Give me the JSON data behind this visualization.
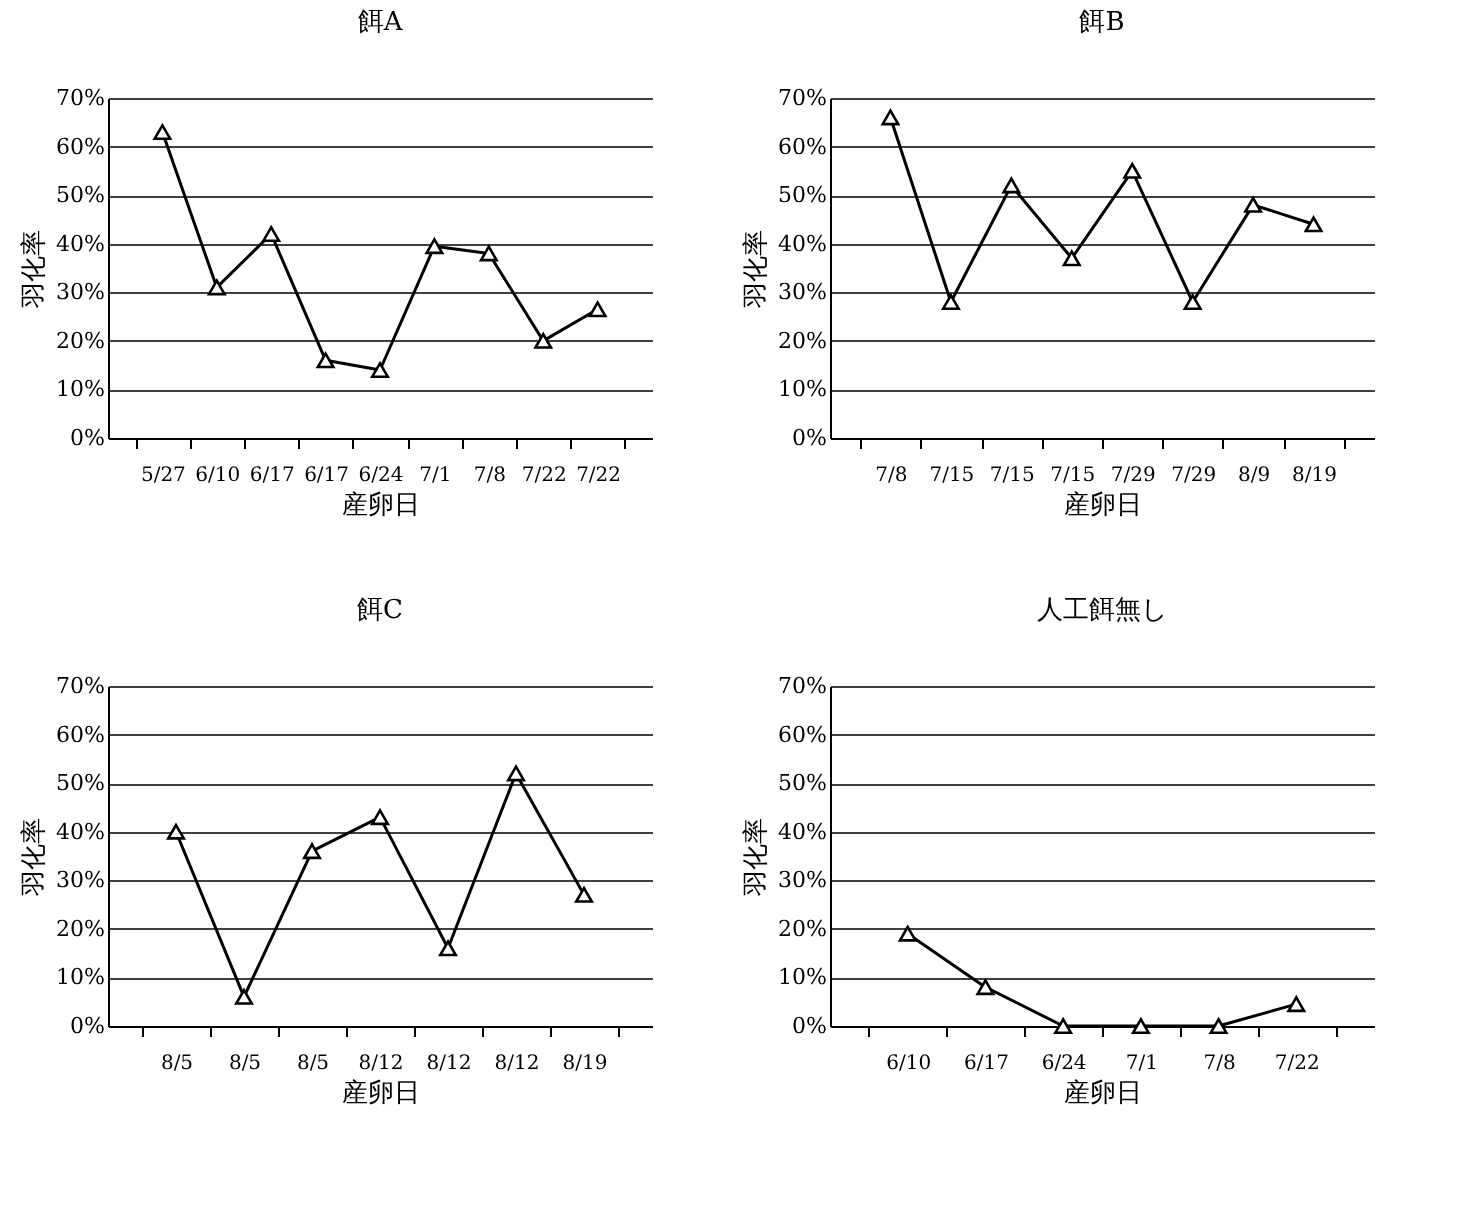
{
  "chart_data": [
    {
      "type": "line",
      "title": "餌A",
      "xlabel": "産卵日",
      "ylabel": "羽化率",
      "categories": [
        "5/27",
        "6/10",
        "6/17",
        "6/17",
        "6/24",
        "7/1",
        "7/8",
        "7/22",
        "7/22"
      ],
      "series": [
        {
          "color": "#000000",
          "values": [
            63,
            31,
            42,
            16,
            14,
            39.5,
            38,
            20,
            26.5
          ]
        }
      ],
      "ylim": [
        0,
        70
      ],
      "yticks": [
        {
          "value": 0,
          "label": "0%"
        },
        {
          "value": 10,
          "label": "10%"
        },
        {
          "value": 20,
          "label": "20%"
        },
        {
          "value": 30,
          "label": "30%"
        },
        {
          "value": 40,
          "label": "40%"
        },
        {
          "value": 50,
          "label": "50%"
        },
        {
          "value": 60,
          "label": "60%"
        },
        {
          "value": 70,
          "label": "70%"
        }
      ],
      "grid": "y",
      "marker": "triangle",
      "line_style": "solid"
    },
    {
      "type": "line",
      "title": "餌B",
      "xlabel": "産卵日",
      "ylabel": "羽化率",
      "categories": [
        "7/8",
        "7/15",
        "7/15",
        "7/15",
        "7/29",
        "7/29",
        "8/9",
        "8/19"
      ],
      "series": [
        {
          "color": "#000000",
          "values": [
            66,
            28,
            52,
            37,
            55,
            28,
            48,
            44
          ]
        }
      ],
      "ylim": [
        0,
        70
      ],
      "yticks": [
        {
          "value": 0,
          "label": "0%"
        },
        {
          "value": 10,
          "label": "10%"
        },
        {
          "value": 20,
          "label": "20%"
        },
        {
          "value": 30,
          "label": "30%"
        },
        {
          "value": 40,
          "label": "40%"
        },
        {
          "value": 50,
          "label": "50%"
        },
        {
          "value": 60,
          "label": "60%"
        },
        {
          "value": 70,
          "label": "70%"
        }
      ],
      "grid": "y",
      "marker": "triangle",
      "line_style": "solid"
    },
    {
      "type": "line",
      "title": "餌C",
      "xlabel": "産卵日",
      "ylabel": "羽化率",
      "categories": [
        "8/5",
        "8/5",
        "8/5",
        "8/12",
        "8/12",
        "8/12",
        "8/19"
      ],
      "series": [
        {
          "color": "#000000",
          "values": [
            40,
            6,
            36,
            43,
            16,
            52,
            27
          ]
        }
      ],
      "ylim": [
        0,
        70
      ],
      "yticks": [
        {
          "value": 0,
          "label": "0%"
        },
        {
          "value": 10,
          "label": "10%"
        },
        {
          "value": 20,
          "label": "20%"
        },
        {
          "value": 30,
          "label": "30%"
        },
        {
          "value": 40,
          "label": "40%"
        },
        {
          "value": 50,
          "label": "50%"
        },
        {
          "value": 60,
          "label": "60%"
        },
        {
          "value": 70,
          "label": "70%"
        }
      ],
      "grid": "y",
      "marker": "triangle",
      "line_style": "solid"
    },
    {
      "type": "line",
      "title": "人工餌無し",
      "xlabel": "産卵日",
      "ylabel": "羽化率",
      "categories": [
        "6/10",
        "6/17",
        "6/24",
        "7/1",
        "7/8",
        "7/22"
      ],
      "series": [
        {
          "color": "#000000",
          "values": [
            19,
            8,
            0,
            0,
            0,
            4.5
          ]
        }
      ],
      "ylim": [
        0,
        70
      ],
      "yticks": [
        {
          "value": 0,
          "label": "0%"
        },
        {
          "value": 10,
          "label": "10%"
        },
        {
          "value": 20,
          "label": "20%"
        },
        {
          "value": 30,
          "label": "30%"
        },
        {
          "value": 40,
          "label": "40%"
        },
        {
          "value": 50,
          "label": "50%"
        },
        {
          "value": 60,
          "label": "60%"
        },
        {
          "value": 70,
          "label": "70%"
        }
      ],
      "grid": "y",
      "marker": "triangle",
      "line_style": "solid"
    }
  ]
}
